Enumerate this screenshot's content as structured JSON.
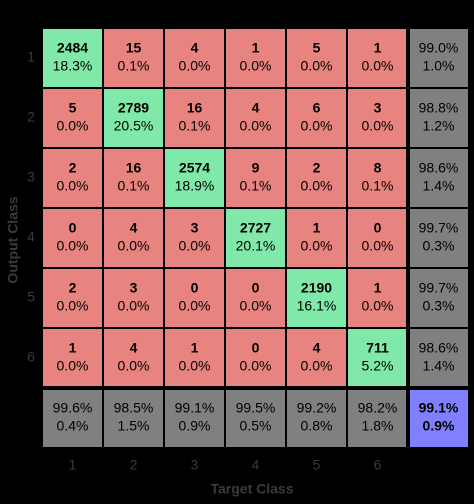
{
  "chart_data": {
    "type": "confusion",
    "xlabel": "Target Class",
    "ylabel": "Output Class",
    "categories": [
      "1",
      "2",
      "3",
      "4",
      "5",
      "6"
    ],
    "counts": [
      [
        2484,
        15,
        4,
        1,
        5,
        1
      ],
      [
        5,
        2789,
        16,
        4,
        6,
        3
      ],
      [
        2,
        16,
        2574,
        9,
        2,
        8
      ],
      [
        0,
        4,
        3,
        2727,
        1,
        0
      ],
      [
        2,
        3,
        0,
        0,
        2190,
        1
      ],
      [
        1,
        4,
        1,
        0,
        4,
        711
      ]
    ],
    "percents": [
      [
        18.3,
        0.1,
        0.0,
        0.0,
        0.0,
        0.0
      ],
      [
        0.0,
        20.5,
        0.1,
        0.0,
        0.0,
        0.0
      ],
      [
        0.0,
        0.1,
        18.9,
        0.1,
        0.0,
        0.1
      ],
      [
        0.0,
        0.0,
        0.0,
        20.1,
        0.0,
        0.0
      ],
      [
        0.0,
        0.0,
        0.0,
        0.0,
        16.1,
        0.0
      ],
      [
        0.0,
        0.0,
        0.0,
        0.0,
        0.0,
        5.2
      ]
    ],
    "percent_labels": [
      [
        "18.3%",
        "0.1%",
        "0.0%",
        "0.0%",
        "0.0%",
        "0.0%"
      ],
      [
        "0.0%",
        "20.5%",
        "0.1%",
        "0.0%",
        "0.0%",
        "0.0%"
      ],
      [
        "0.0%",
        "0.1%",
        "18.9%",
        "0.1%",
        "0.0%",
        "0.1%"
      ],
      [
        "0.0%",
        "0.0%",
        "0.0%",
        "20.1%",
        "0.0%",
        "0.0%"
      ],
      [
        "0.0%",
        "0.0%",
        "0.0%",
        "0.0%",
        "16.1%",
        "0.0%"
      ],
      [
        "0.0%",
        "0.0%",
        "0.0%",
        "0.0%",
        "0.0%",
        "5.2%"
      ]
    ],
    "row_correct": [
      99.0,
      98.8,
      98.6,
      99.7,
      99.7,
      98.6
    ],
    "row_correct_labels": [
      "99.0%",
      "98.8%",
      "98.6%",
      "99.7%",
      "99.7%",
      "98.6%"
    ],
    "row_error": [
      1.0,
      1.2,
      1.4,
      0.3,
      0.3,
      1.4
    ],
    "row_error_labels": [
      "1.0%",
      "1.2%",
      "1.4%",
      "0.3%",
      "0.3%",
      "1.4%"
    ],
    "col_correct": [
      99.6,
      98.5,
      99.1,
      99.5,
      99.2,
      98.2
    ],
    "col_correct_labels": [
      "99.6%",
      "98.5%",
      "99.1%",
      "99.5%",
      "99.2%",
      "98.2%"
    ],
    "col_error": [
      0.4,
      1.5,
      0.9,
      0.5,
      0.8,
      1.8
    ],
    "col_error_labels": [
      "0.4%",
      "1.5%",
      "0.9%",
      "0.5%",
      "0.8%",
      "1.8%"
    ],
    "overall_correct": 99.1,
    "overall_correct_label": "99.1%",
    "overall_error": 0.9,
    "overall_error_label": "0.9%",
    "correct_color": "#80e8a8",
    "error_color": "#e8847f",
    "summary_color": "#808080",
    "overall_color": "#8080ff",
    "correct_text_color": "#007a00",
    "error_text_color": "#8b0000"
  }
}
